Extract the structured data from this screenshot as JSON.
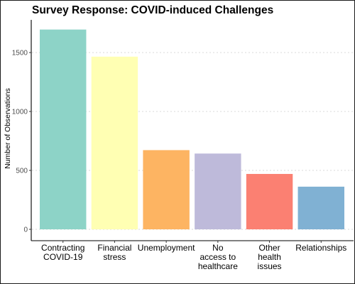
{
  "chart_data": {
    "type": "bar",
    "title": "Survey Response: COVID-induced Challenges",
    "xlabel": "",
    "ylabel": "Number of Observations",
    "categories": [
      [
        "Contracting",
        "COVID-19"
      ],
      [
        "Financial",
        "stress"
      ],
      [
        "Unemployment"
      ],
      [
        "No",
        "access to",
        "healthcare"
      ],
      [
        "Other",
        "health",
        "issues"
      ],
      [
        "Relationships"
      ]
    ],
    "values": [
      1695,
      1465,
      672,
      643,
      470,
      362
    ],
    "colors": [
      "#8dd3c7",
      "#ffffb3",
      "#fdb462",
      "#bebada",
      "#fb8072",
      "#80b1d3"
    ],
    "ylim": [
      0,
      1800
    ],
    "yticks": [
      0,
      500,
      1000,
      1500
    ],
    "grid": true,
    "legend": "none"
  }
}
